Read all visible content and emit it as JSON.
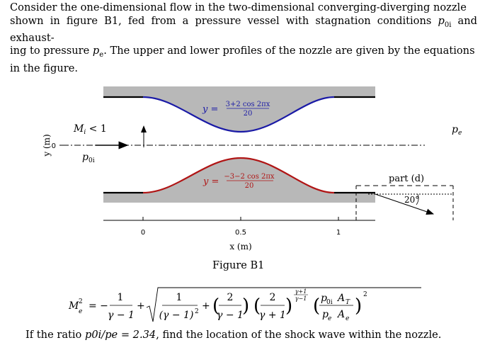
{
  "problem": {
    "paragraph": "Consider the one-dimensional flow in the two-dimensional converging-diverging nozzle shown in figure B1, fed from a pressure vessel with stagnation conditions p0i and exhausting to pressure pe. The upper and lower profiles of the nozzle are given by the equations in the figure.",
    "line1": "Consider the one-dimensional flow in the two-dimensional converging-diverging nozzle",
    "line2a": "shown in figure B1, fed from a pressure vessel with stagnation conditions ",
    "line2b": " and exhaust-",
    "line3a": "ing to pressure ",
    "line3b": ". The upper and lower profiles of the nozzle are given by the equations",
    "line4": "in the figure."
  },
  "figure": {
    "caption": "Figure B1",
    "upper_equation": "y = (3+2 cos 2πx)/20",
    "upper_eq_num": "3+2 cos 2πx",
    "lower_equation": "y = (−3−2 cos 2πx)/20",
    "lower_eq_num": "−3−2 cos 2πx",
    "eq_den": "20",
    "eq_lhs": "y =",
    "mach_label": "M",
    "mach_sub": "i",
    "mach_rel": " < 1",
    "p0i_label": "p",
    "p0i_sub": "0i",
    "pe_label": "p",
    "pe_sub": "e",
    "part_label": "part (d)",
    "angle_label": "20°",
    "y_axis_label": "y (m)",
    "y_tick": "0",
    "x_axis_label": "x (m)",
    "x_ticks": [
      "0",
      "0.5",
      "1"
    ],
    "colors": {
      "upper_wall": "#1a1aa6",
      "lower_wall": "#b01515",
      "fill": "#b8b8b8"
    }
  },
  "equation": {
    "lhs": "M",
    "lhs_sup": "2",
    "lhs_sub": "e",
    "text": "M_e^2 = −1/(γ−1) + sqrt( 1/(γ−1)^2 + (2/(γ−1)) (2/(γ+1))^((γ+1)/(γ−1)) (p0i AT / (pe Ae))^2 )",
    "one": "1",
    "two": "2",
    "gm1": "γ − 1",
    "gm1sq": "(γ − 1)",
    "gp1": "γ + 1",
    "exp_num": "γ+1",
    "exp_den": "γ−1",
    "AT": "A",
    "AT_sub": "T",
    "Ae": "A",
    "Ae_sub": "e"
  },
  "question": {
    "text_a": "If the ratio ",
    "ratio": "p0i/pe = 2.34",
    "text_b": ", find the location of the shock wave within the nozzle."
  }
}
